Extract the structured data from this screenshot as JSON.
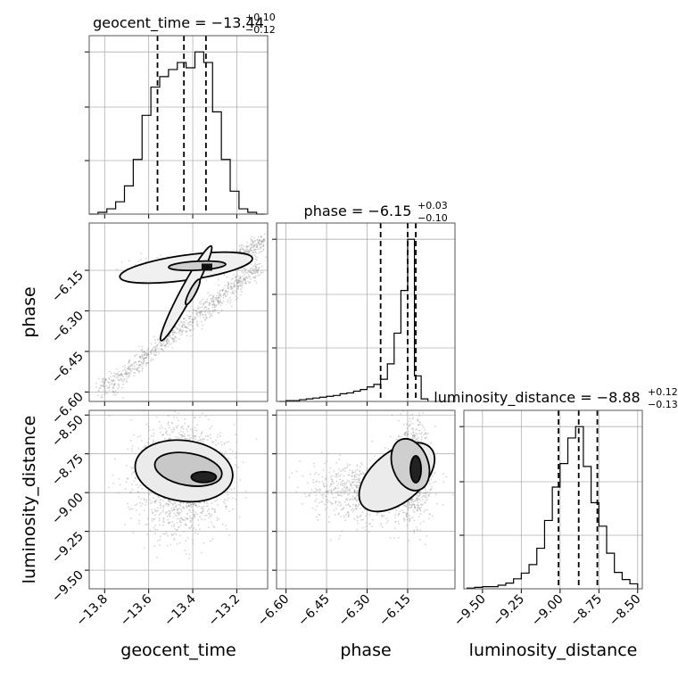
{
  "chart_data": {
    "type": "corner",
    "parameters": [
      "geocent_time",
      "phase",
      "luminosity_distance"
    ],
    "axis_labels": [
      "geocent_time",
      "phase",
      "luminosity_distance"
    ],
    "titles": [
      {
        "name": "geocent_time",
        "median": "−13.44",
        "plus": "+0.10",
        "minus": "−0.12"
      },
      {
        "name": "phase",
        "median": "−6.15",
        "plus": "+0.03",
        "minus": "−0.10"
      },
      {
        "name": "luminosity_distance",
        "median": "−8.88",
        "plus": "+0.12",
        "minus": "−0.13"
      }
    ],
    "ranges": [
      [
        -13.87,
        -13.06
      ],
      [
        -6.635,
        -5.975
      ],
      [
        -9.62,
        -8.47
      ]
    ],
    "ticks": [
      {
        "values": [
          -13.8,
          -13.6,
          -13.4,
          -13.2
        ],
        "labels": [
          "−13.8",
          "−13.6",
          "−13.4",
          "−13.2"
        ]
      },
      {
        "values": [
          -6.6,
          -6.45,
          -6.3,
          -6.15
        ],
        "labels": [
          "−6.60",
          "−6.45",
          "−6.30",
          "−6.15"
        ]
      },
      {
        "values": [
          -9.5,
          -9.25,
          -9.0,
          -8.75,
          -8.5
        ],
        "labels": [
          "−9.50",
          "−9.25",
          "−9.00",
          "−8.75",
          "−8.50"
        ]
      }
    ],
    "quantiles": [
      [
        -13.56,
        -13.44,
        -13.34
      ],
      [
        -6.25,
        -6.15,
        -6.12
      ],
      [
        -9.01,
        -8.88,
        -8.76
      ]
    ],
    "histograms": [
      {
        "parameter": "geocent_time",
        "bin_edges": [
          -13.87,
          -13.83,
          -13.79,
          -13.75,
          -13.71,
          -13.67,
          -13.63,
          -13.59,
          -13.55,
          -13.51,
          -13.47,
          -13.43,
          -13.39,
          -13.35,
          -13.31,
          -13.27,
          -13.23,
          -13.19,
          -13.15,
          -13.11,
          -13.07
        ],
        "counts": [
          0,
          1,
          3,
          7,
          16,
          31,
          56,
          72,
          78,
          82,
          86,
          83,
          92,
          86,
          58,
          31,
          13,
          3,
          1,
          0
        ]
      },
      {
        "parameter": "phase",
        "bin_edges": [
          -6.625,
          -6.6,
          -6.575,
          -6.55,
          -6.525,
          -6.5,
          -6.475,
          -6.45,
          -6.425,
          -6.4,
          -6.375,
          -6.35,
          -6.325,
          -6.3,
          -6.275,
          -6.25,
          -6.225,
          -6.2,
          -6.175,
          -6.15,
          -6.125,
          -6.1,
          -6.075
        ],
        "counts": [
          0,
          1,
          1,
          2,
          3,
          4,
          5,
          6,
          7,
          9,
          10,
          12,
          14,
          17,
          20,
          26,
          44,
          80,
          130,
          190,
          30,
          3
        ]
      },
      {
        "parameter": "luminosity_distance",
        "bin_edges": [
          -9.6,
          -9.55,
          -9.5,
          -9.45,
          -9.4,
          -9.35,
          -9.3,
          -9.25,
          -9.2,
          -9.15,
          -9.1,
          -9.05,
          -9.0,
          -8.95,
          -8.9,
          -8.85,
          -8.8,
          -8.75,
          -8.7,
          -8.65,
          -8.6,
          -8.55,
          -8.5
        ],
        "counts": [
          1,
          2,
          3,
          3,
          5,
          8,
          14,
          22,
          34,
          57,
          96,
          143,
          176,
          212,
          228,
          172,
          121,
          88,
          50,
          23,
          13,
          7
        ]
      }
    ],
    "scatter_panels": [
      {
        "x": "geocent_time",
        "y": "phase",
        "contour_levels": 3
      },
      {
        "x": "geocent_time",
        "y": "luminosity_distance",
        "contour_levels": 3
      },
      {
        "x": "phase",
        "y": "luminosity_distance",
        "contour_levels": 3
      }
    ],
    "grid": true
  }
}
